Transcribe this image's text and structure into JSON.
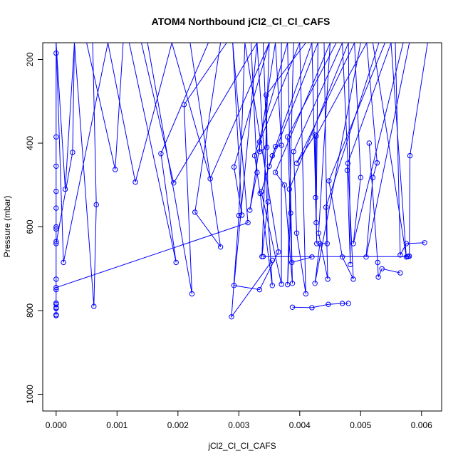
{
  "chart_data": {
    "type": "line",
    "title": "ATOM4 Northbound jCl2_Cl_Cl_CAFS",
    "xlabel": "jCl2_Cl_Cl_CAFS",
    "ylabel": "Pressure (mbar)",
    "xlim": [
      -0.00022,
      0.00633
    ],
    "ylim": [
      1040,
      160
    ],
    "y_reversed": true,
    "x_ticks": [
      0.0,
      0.001,
      0.002,
      0.003,
      0.004,
      0.005,
      0.006
    ],
    "x_tick_labels": [
      "0.000",
      "0.001",
      "0.002",
      "0.003",
      "0.004",
      "0.005",
      "0.006"
    ],
    "y_ticks": [
      200,
      400,
      600,
      800,
      1000
    ],
    "y_tick_labels": [
      "200",
      "400",
      "600",
      "800",
      "1000"
    ],
    "color": "#0000ff",
    "marker": "open-circle",
    "grid": false,
    "series": [
      {
        "points": [
          [
            0.0,
            160
          ],
          [
            0.0,
            185
          ],
          [
            0.0,
            385
          ],
          [
            0.0,
            455
          ],
          [
            0.0,
            515
          ],
          [
            0.0,
            555
          ],
          [
            0.0,
            600
          ],
          [
            0.0,
            605
          ],
          [
            0.0,
            635
          ],
          [
            0.0,
            725
          ],
          [
            0.0,
            750
          ],
          [
            0.0,
            782
          ],
          [
            0.0,
            785
          ],
          [
            0.0,
            793
          ],
          [
            0.0,
            795
          ],
          [
            0.0,
            810
          ],
          [
            0.0,
            812
          ]
        ]
      },
      {
        "points": [
          [
            0.00085,
            160
          ],
          [
            0.00012,
            685
          ],
          [
            0.0,
            160
          ]
        ]
      },
      {
        "points": [
          [
            0.0003,
            160
          ],
          [
            0.00015,
            510
          ],
          [
            0.0,
            160
          ]
        ]
      },
      {
        "points": [
          [
            0.0003,
            160
          ],
          [
            0.00027,
            422
          ],
          [
            0.0,
            640
          ]
        ]
      },
      {
        "points": [
          [
            0.0006,
            160
          ],
          [
            0.00066,
            547
          ],
          [
            0.00062,
            790
          ],
          [
            0.0003,
            160
          ]
        ]
      },
      {
        "points": [
          [
            0.0011,
            160
          ],
          [
            0.00097,
            463
          ],
          [
            0.0005,
            160
          ]
        ]
      },
      {
        "points": [
          [
            0.0019,
            160
          ],
          [
            0.0013,
            493
          ],
          [
            0.00085,
            160
          ]
        ]
      },
      {
        "points": [
          [
            0.0025,
            160
          ],
          [
            0.00172,
            425
          ],
          [
            0.00197,
            685
          ],
          [
            0.0012,
            160
          ]
        ]
      },
      {
        "points": [
          [
            0.0028,
            160
          ],
          [
            0.0021,
            308
          ],
          [
            0.00223,
            760
          ],
          [
            0.0015,
            160
          ]
        ]
      },
      {
        "points": [
          [
            0.0033,
            160
          ],
          [
            0.00193,
            495
          ],
          [
            0.0014,
            160
          ]
        ]
      },
      {
        "points": [
          [
            0.0035,
            160
          ],
          [
            0.00253,
            485
          ],
          [
            0.0019,
            160
          ]
        ]
      },
      {
        "points": [
          [
            0.0027,
            160
          ],
          [
            0.00228,
            565
          ],
          [
            0.0027,
            648
          ],
          [
            0.0022,
            160
          ]
        ]
      },
      {
        "points": [
          [
            0.0031,
            160
          ],
          [
            0.003,
            573
          ],
          [
            0.00288,
            815
          ],
          [
            0.00355,
            680
          ]
        ]
      },
      {
        "points": [
          [
            0.0,
            745
          ],
          [
            0.00315,
            590
          ],
          [
            0.0029,
            160
          ]
        ]
      },
      {
        "points": [
          [
            0.0033,
            160
          ],
          [
            0.00292,
            740
          ],
          [
            0.00334,
            750
          ],
          [
            0.00365,
            660
          ],
          [
            0.0031,
            160
          ]
        ]
      },
      {
        "points": [
          [
            0.0035,
            160
          ],
          [
            0.00292,
            457
          ],
          [
            0.00305,
            572
          ],
          [
            0.0029,
            160
          ]
        ]
      },
      {
        "points": [
          [
            0.0036,
            160
          ],
          [
            0.00318,
            560
          ],
          [
            0.0033,
            470
          ],
          [
            0.0032,
            160
          ]
        ]
      },
      {
        "points": [
          [
            0.0038,
            160
          ],
          [
            0.00326,
            430
          ],
          [
            0.00335,
            520
          ],
          [
            0.00355,
            740
          ],
          [
            0.0033,
            160
          ]
        ]
      },
      {
        "points": [
          [
            0.004,
            160
          ],
          [
            0.00334,
            397
          ],
          [
            0.00334,
            420
          ],
          [
            0.00346,
            410
          ],
          [
            0.0034,
            160
          ]
        ]
      },
      {
        "points": [
          [
            0.0041,
            160
          ],
          [
            0.00345,
            285
          ],
          [
            0.00348,
            540
          ],
          [
            0.00338,
            671
          ],
          [
            0.0035,
            160
          ]
        ]
      },
      {
        "points": [
          [
            0.0043,
            160
          ],
          [
            0.0035,
            455
          ],
          [
            0.0036,
            408
          ],
          [
            0.0037,
            405
          ],
          [
            0.0036,
            160
          ]
        ]
      },
      {
        "points": [
          [
            0.0042,
            160
          ],
          [
            0.00355,
            430
          ],
          [
            0.00337,
            516
          ],
          [
            0.0037,
            737
          ],
          [
            0.0037,
            160
          ]
        ]
      },
      {
        "points": [
          [
            0.0045,
            160
          ],
          [
            0.0036,
            470
          ],
          [
            0.00375,
            500
          ],
          [
            0.00388,
            735
          ],
          [
            0.0038,
            160
          ]
        ]
      },
      {
        "points": [
          [
            0.0046,
            160
          ],
          [
            0.0038,
            385
          ],
          [
            0.00385,
            567
          ],
          [
            0.0038,
            738
          ],
          [
            0.0039,
            160
          ]
        ]
      },
      {
        "points": [
          [
            0.0048,
            160
          ],
          [
            0.00383,
            510
          ],
          [
            0.00387,
            685
          ],
          [
            0.0042,
            672
          ]
        ]
      },
      {
        "points": [
          [
            0.0047,
            160
          ],
          [
            0.0039,
            420
          ],
          [
            0.00395,
            615
          ],
          [
            0.0041,
            760
          ],
          [
            0.004,
            160
          ]
        ]
      },
      {
        "points": [
          [
            0.0049,
            160
          ],
          [
            0.00395,
            448
          ],
          [
            0.00425,
            380
          ],
          [
            0.00428,
            640
          ],
          [
            0.0042,
            160
          ]
        ]
      },
      {
        "points": [
          [
            0.0051,
            160
          ],
          [
            0.00427,
            383
          ],
          [
            0.00426,
            530
          ],
          [
            0.00427,
            590
          ],
          [
            0.0043,
            160
          ]
        ]
      },
      {
        "points": [
          [
            0.005,
            160
          ],
          [
            0.00425,
            735
          ],
          [
            0.00433,
            640
          ],
          [
            0.00445,
            640
          ],
          [
            0.0044,
            160
          ]
        ]
      },
      {
        "points": [
          [
            0.0053,
            160
          ],
          [
            0.00443,
            553
          ],
          [
            0.00446,
            725
          ],
          [
            0.00431,
            615
          ],
          [
            0.0045,
            160
          ]
        ]
      },
      {
        "points": [
          [
            0.0054,
            160
          ],
          [
            0.00448,
            490
          ],
          [
            0.0047,
            672
          ],
          [
            0.00488,
            725
          ],
          [
            0.0047,
            160
          ]
        ]
      },
      {
        "points": [
          [
            0.00388,
            792
          ],
          [
            0.0042,
            793
          ],
          [
            0.00447,
            785
          ],
          [
            0.0047,
            783
          ],
          [
            0.0048,
            783
          ]
        ]
      },
      {
        "points": [
          [
            0.0055,
            160
          ],
          [
            0.00479,
            448
          ],
          [
            0.00478,
            465
          ],
          [
            0.00483,
            690
          ],
          [
            0.0048,
            160
          ]
        ]
      },
      {
        "points": [
          [
            0.0057,
            160
          ],
          [
            0.00488,
            640
          ],
          [
            0.005,
            482
          ],
          [
            0.0049,
            160
          ]
        ]
      },
      {
        "points": [
          [
            0.0058,
            160
          ],
          [
            0.00509,
            672
          ],
          [
            0.0052,
            482
          ],
          [
            0.00527,
            447
          ],
          [
            0.0051,
            160
          ]
        ]
      },
      {
        "points": [
          [
            0.00514,
            400
          ],
          [
            0.00528,
            685
          ],
          [
            0.00529,
            720
          ],
          [
            0.00535,
            700
          ],
          [
            0.00565,
            710
          ]
        ]
      },
      {
        "points": [
          [
            0.00557,
            160
          ],
          [
            0.00565,
            667
          ],
          [
            0.00575,
            640
          ],
          [
            0.00605,
            638
          ]
        ]
      },
      {
        "points": [
          [
            0.0061,
            160
          ],
          [
            0.00581,
            430
          ],
          [
            0.0058,
            670
          ],
          [
            0.00578,
            671
          ],
          [
            0.00577,
            671
          ],
          [
            0.0034,
            671
          ]
        ]
      },
      {
        "points": [
          [
            0.0052,
            160
          ],
          [
            0.00575,
            672
          ],
          [
            0.0055,
            160
          ]
        ]
      }
    ]
  }
}
